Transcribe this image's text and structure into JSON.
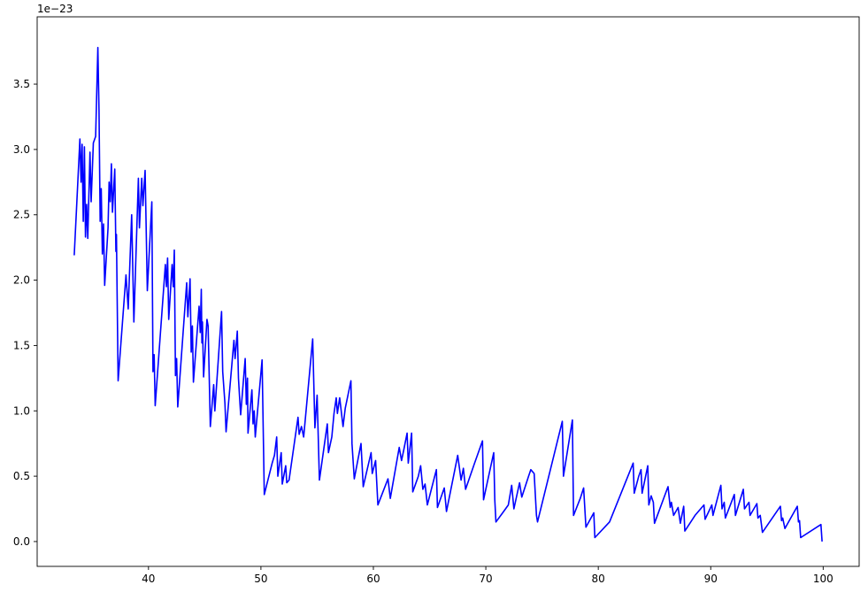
{
  "chart_data": {
    "type": "line",
    "title": "",
    "xlabel": "",
    "ylabel": "",
    "y_multiplier_label": "1e−23",
    "xlim": [
      30.1,
      103.2
    ],
    "ylim": [
      -0.19,
      4.015
    ],
    "grid": false,
    "line_color": "#0000ff",
    "x_ticks": [
      40,
      50,
      60,
      70,
      80,
      90,
      100
    ],
    "x_tick_labels": [
      "40",
      "50",
      "60",
      "70",
      "80",
      "90",
      "100"
    ],
    "y_ticks": [
      0,
      0.5,
      1,
      1.5,
      2,
      2.5,
      3,
      3.5
    ],
    "y_tick_labels": [
      "0.0",
      "0.5",
      "1.0",
      "1.5",
      "2.0",
      "2.5",
      "3.0",
      "3.5"
    ],
    "series": [
      {
        "x": [
          33.4,
          33.6,
          33.9,
          34.0,
          34.1,
          34.2,
          34.3,
          34.4,
          34.5,
          34.6,
          34.8,
          34.9,
          35.1,
          35.3,
          35.5,
          35.6,
          35.7,
          35.8,
          35.9,
          36.0,
          36.1,
          36.4,
          36.5,
          36.6,
          36.7,
          36.8,
          37.0,
          37.1,
          37.15,
          37.3,
          38.0,
          38.2,
          38.5,
          38.7,
          39.1,
          39.2,
          39.4,
          39.5,
          39.7,
          39.9,
          40.3,
          40.4,
          40.5,
          40.6,
          41.5,
          41.6,
          41.7,
          41.8,
          42.1,
          42.2,
          42.3,
          42.4,
          42.5,
          42.6,
          43.4,
          43.5,
          43.7,
          43.8,
          43.9,
          44.0,
          44.5,
          44.6,
          44.7,
          44.75,
          44.8,
          44.9,
          45.2,
          45.3,
          45.5,
          45.8,
          45.9,
          46.5,
          46.6,
          46.8,
          46.9,
          47.6,
          47.7,
          47.9,
          48.0,
          48.1,
          48.2,
          48.6,
          48.7,
          48.8,
          48.85,
          49.2,
          49.3,
          49.4,
          49.5,
          50.1,
          50.3,
          51.0,
          51.2,
          51.4,
          51.5,
          51.8,
          51.9,
          52.2,
          52.3,
          52.5,
          53.3,
          53.4,
          53.6,
          53.8,
          54.6,
          54.8,
          55.0,
          55.2,
          55.9,
          56.0,
          56.3,
          56.5,
          56.7,
          56.8,
          57.0,
          57.3,
          57.5,
          58.0,
          58.1,
          58.3,
          58.9,
          59.1,
          59.8,
          59.9,
          60.2,
          60.4,
          61.3,
          61.5,
          62.3,
          62.5,
          62.7,
          63.0,
          63.1,
          63.4,
          63.5,
          64.0,
          64.2,
          64.4,
          64.6,
          64.8,
          65.6,
          65.7,
          66.3,
          66.5,
          67.5,
          67.8,
          68.0,
          68.2,
          69.0,
          69.7,
          69.8,
          70.7,
          70.8,
          70.9,
          71.5,
          72.0,
          72.3,
          72.5,
          73.0,
          73.2,
          73.8,
          74.0,
          74.3,
          74.5,
          74.6,
          76.8,
          76.9,
          77.7,
          77.8,
          78.4,
          78.7,
          78.9,
          79.6,
          79.7,
          81.0,
          83.1,
          83.2,
          83.6,
          83.8,
          83.9,
          84.4,
          84.5,
          84.7,
          84.9,
          85.0,
          86.2,
          86.4,
          86.5,
          86.7,
          87.1,
          87.3,
          87.6,
          87.7,
          88.6,
          89.4,
          89.5,
          90.1,
          90.2,
          90.9,
          91.0,
          91.2,
          91.3,
          92.1,
          92.2,
          92.9,
          93.0,
          93.4,
          93.5,
          94.1,
          94.2,
          94.4,
          94.6,
          96.2,
          96.3,
          96.4,
          96.6,
          97.7,
          97.8,
          97.9,
          98.0,
          99.8,
          99.9
        ],
        "y": [
          2.19,
          2.55,
          3.08,
          2.75,
          3.04,
          2.45,
          3.02,
          2.33,
          2.58,
          2.32,
          2.98,
          2.6,
          3.05,
          3.1,
          3.78,
          3.3,
          2.45,
          2.7,
          2.2,
          2.43,
          1.96,
          2.4,
          2.75,
          2.6,
          2.89,
          2.52,
          2.85,
          2.22,
          2.35,
          1.23,
          2.04,
          1.78,
          2.5,
          1.68,
          2.78,
          2.4,
          2.78,
          2.57,
          2.84,
          1.92,
          2.6,
          1.3,
          1.43,
          1.04,
          2.12,
          1.95,
          2.17,
          1.7,
          2.12,
          1.95,
          2.23,
          1.27,
          1.4,
          1.03,
          1.98,
          1.72,
          2.01,
          1.45,
          1.65,
          1.22,
          1.8,
          1.6,
          1.93,
          1.52,
          1.68,
          1.26,
          1.7,
          1.65,
          0.88,
          1.2,
          1.0,
          1.76,
          1.3,
          1.06,
          0.84,
          1.54,
          1.4,
          1.61,
          1.25,
          1.1,
          0.97,
          1.4,
          1.05,
          1.25,
          0.83,
          1.16,
          0.9,
          1.0,
          0.8,
          1.39,
          0.36,
          0.6,
          0.66,
          0.8,
          0.5,
          0.68,
          0.44,
          0.58,
          0.45,
          0.47,
          0.95,
          0.82,
          0.88,
          0.8,
          1.55,
          0.87,
          1.12,
          0.47,
          0.9,
          0.68,
          0.8,
          0.98,
          1.1,
          0.98,
          1.1,
          0.88,
          1.02,
          1.23,
          0.75,
          0.48,
          0.75,
          0.42,
          0.68,
          0.52,
          0.62,
          0.28,
          0.48,
          0.33,
          0.72,
          0.62,
          0.7,
          0.83,
          0.6,
          0.83,
          0.38,
          0.5,
          0.58,
          0.4,
          0.44,
          0.28,
          0.55,
          0.26,
          0.41,
          0.23,
          0.66,
          0.47,
          0.56,
          0.4,
          0.6,
          0.77,
          0.32,
          0.68,
          0.32,
          0.15,
          0.22,
          0.28,
          0.43,
          0.25,
          0.45,
          0.34,
          0.5,
          0.55,
          0.52,
          0.2,
          0.15,
          0.92,
          0.5,
          0.93,
          0.2,
          0.33,
          0.41,
          0.11,
          0.22,
          0.03,
          0.15,
          0.6,
          0.37,
          0.5,
          0.55,
          0.37,
          0.58,
          0.28,
          0.35,
          0.3,
          0.14,
          0.42,
          0.26,
          0.3,
          0.2,
          0.26,
          0.14,
          0.27,
          0.08,
          0.2,
          0.28,
          0.17,
          0.28,
          0.2,
          0.43,
          0.25,
          0.3,
          0.18,
          0.36,
          0.2,
          0.4,
          0.25,
          0.3,
          0.2,
          0.29,
          0.18,
          0.2,
          0.07,
          0.27,
          0.16,
          0.18,
          0.1,
          0.27,
          0.15,
          0.16,
          0.03,
          0.13,
          0.0
        ]
      }
    ]
  }
}
